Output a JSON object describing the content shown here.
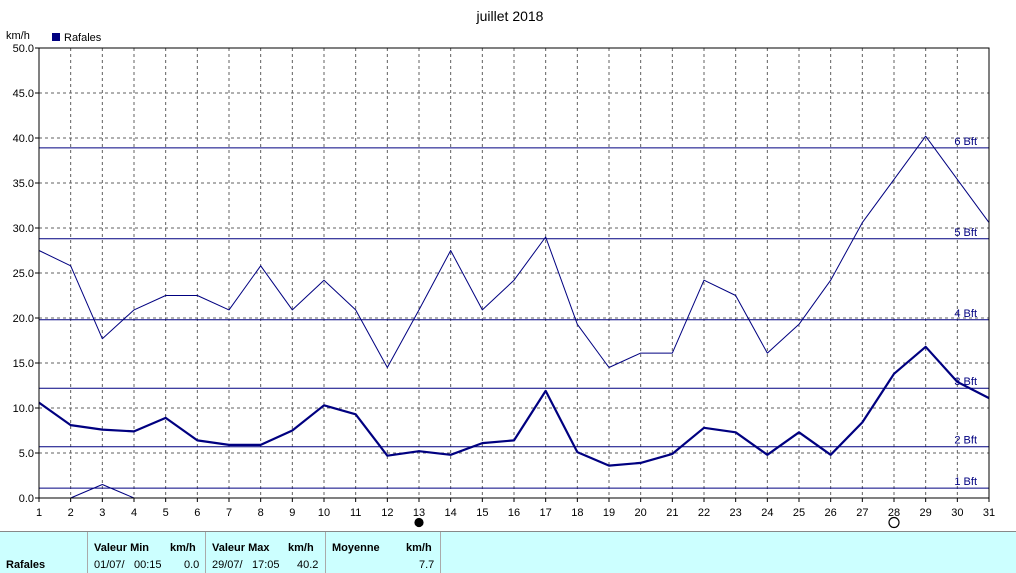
{
  "chart_data": {
    "type": "line",
    "title": "juillet 2018",
    "ylabel": "km/h",
    "xlabel": "",
    "ylim": [
      0,
      50
    ],
    "y_ticks": [
      "0.0",
      "5.0",
      "10.0",
      "15.0",
      "20.0",
      "25.0",
      "30.0",
      "35.0",
      "40.0",
      "45.0",
      "50.0"
    ],
    "x": [
      1,
      2,
      3,
      4,
      5,
      6,
      7,
      8,
      9,
      10,
      11,
      12,
      13,
      14,
      15,
      16,
      17,
      18,
      19,
      20,
      21,
      22,
      23,
      24,
      25,
      26,
      27,
      28,
      29,
      30,
      31
    ],
    "legend": [
      {
        "name": "Rafales",
        "color": "#000080"
      }
    ],
    "legend_placement": "top-left",
    "grid": true,
    "series": [
      {
        "name": "Rafales",
        "style": "thin",
        "values": [
          27.5,
          25.8,
          17.7,
          20.9,
          22.5,
          22.5,
          20.9,
          25.8,
          20.9,
          24.2,
          20.9,
          14.5,
          20.9,
          27.5,
          20.9,
          24.2,
          29.0,
          19.3,
          14.5,
          16.1,
          16.1,
          24.2,
          22.5,
          16.1,
          19.3,
          24.2,
          30.6,
          35.4,
          40.2,
          35.4,
          30.6
        ]
      },
      {
        "style": "thick",
        "values": [
          10.6,
          8.1,
          7.6,
          7.4,
          8.9,
          6.4,
          5.9,
          5.9,
          7.5,
          10.3,
          9.3,
          4.7,
          5.2,
          4.8,
          6.1,
          6.4,
          11.9,
          5.1,
          3.6,
          3.9,
          4.9,
          7.8,
          7.3,
          4.8,
          7.3,
          4.8,
          8.4,
          13.8,
          16.8,
          12.9,
          11.1
        ]
      },
      {
        "style": "thin",
        "x": [
          2,
          3,
          4
        ],
        "values": [
          0.0,
          1.5,
          0.0
        ]
      }
    ],
    "beaufort_lines": [
      {
        "label": "1 Bft",
        "value": 1.1
      },
      {
        "label": "2 Bft",
        "value": 5.7
      },
      {
        "label": "3 Bft",
        "value": 12.2
      },
      {
        "label": "4 Bft",
        "value": 19.8
      },
      {
        "label": "5 Bft",
        "value": 28.8
      },
      {
        "label": "6 Bft",
        "value": 38.9
      }
    ],
    "moon_phases": [
      {
        "day": 13,
        "phase": "new-moon"
      },
      {
        "day": 28,
        "phase": "full-moon"
      }
    ]
  },
  "stats": {
    "row_label": "Rafales",
    "min_header": "Valeur Min",
    "min_unit": "km/h",
    "min_date": "01/07/",
    "min_time": "00:15",
    "min_value": "0.0",
    "max_header": "Valeur Max",
    "max_unit": "km/h",
    "max_date": "29/07/",
    "max_time": "17:05",
    "max_value": "40.2",
    "avg_header": "Moyenne",
    "avg_unit": "km/h",
    "avg_value": "7.7"
  }
}
